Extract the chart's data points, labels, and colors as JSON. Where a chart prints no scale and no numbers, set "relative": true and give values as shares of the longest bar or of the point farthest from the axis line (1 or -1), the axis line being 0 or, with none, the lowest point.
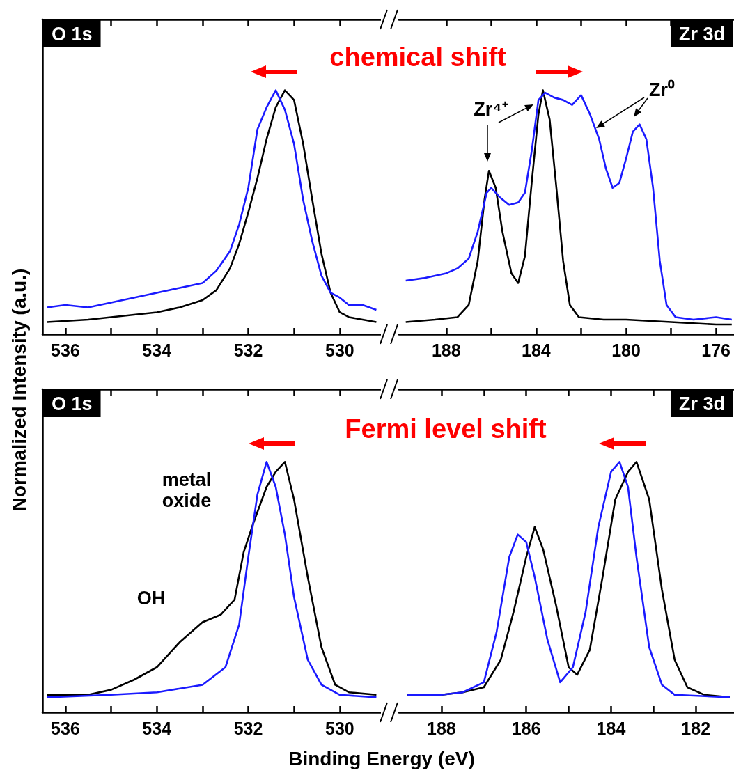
{
  "chart_data": [
    {
      "type": "line",
      "title": "O 1s",
      "ylabel": "Normalized Intensity (a.u.)",
      "relative": true,
      "xlim": [
        536.5,
        529.1
      ],
      "xticks": [
        536,
        {
          "value": 535,
          "label": null
        },
        534,
        {
          "value": 533,
          "label": null
        },
        532,
        {
          "value": 531,
          "label": null
        },
        530
      ],
      "annotations": [
        "chemical shift"
      ],
      "series": [
        {
          "color": "#000000",
          "x": [
            536.4,
            535.5,
            535,
            534.5,
            534,
            533.5,
            533,
            532.7,
            532.4,
            532.2,
            532,
            531.8,
            531.6,
            531.4,
            531.2,
            531,
            530.8,
            530.6,
            530.4,
            530.2,
            530,
            529.8,
            529.5,
            529.2
          ],
          "values": [
            0.05,
            0.06,
            0.07,
            0.08,
            0.09,
            0.11,
            0.14,
            0.18,
            0.27,
            0.37,
            0.5,
            0.64,
            0.8,
            0.93,
            1.0,
            0.96,
            0.78,
            0.55,
            0.33,
            0.17,
            0.09,
            0.07,
            0.06,
            0.05
          ]
        },
        {
          "color": "#1a1aff",
          "x": [
            536.4,
            536,
            535.5,
            535,
            534.5,
            534,
            533.5,
            533,
            532.7,
            532.4,
            532.2,
            532,
            531.8,
            531.6,
            531.4,
            531.2,
            531,
            530.8,
            530.6,
            530.4,
            530.2,
            530,
            529.8,
            529.5,
            529.2
          ],
          "values": [
            0.11,
            0.12,
            0.11,
            0.13,
            0.15,
            0.17,
            0.19,
            0.21,
            0.26,
            0.34,
            0.45,
            0.6,
            0.84,
            0.93,
            1.0,
            0.92,
            0.78,
            0.55,
            0.38,
            0.24,
            0.17,
            0.15,
            0.12,
            0.12,
            0.1
          ]
        }
      ]
    },
    {
      "type": "line",
      "title": "Zr 3d",
      "relative": true,
      "xlim": [
        190.1,
        175.2
      ],
      "xticks": [
        188,
        {
          "value": 186,
          "label": null
        },
        184,
        {
          "value": 182,
          "label": null
        },
        180,
        {
          "value": 178,
          "label": null
        },
        176
      ],
      "annotations": [
        "Zr⁴⁺",
        "Zr⁰"
      ],
      "series": [
        {
          "color": "#000000",
          "x": [
            189.8,
            188.5,
            187.5,
            187,
            186.6,
            186.3,
            186.1,
            185.8,
            185.5,
            185.1,
            184.8,
            184.5,
            184.2,
            183.9,
            183.7,
            183.4,
            183.1,
            182.8,
            182.5,
            182.1,
            181,
            180,
            178,
            176,
            175.3
          ],
          "values": [
            0.05,
            0.06,
            0.07,
            0.12,
            0.3,
            0.55,
            0.67,
            0.6,
            0.42,
            0.25,
            0.21,
            0.32,
            0.62,
            0.9,
            1.0,
            0.88,
            0.6,
            0.3,
            0.12,
            0.07,
            0.06,
            0.06,
            0.05,
            0.04,
            0.04
          ]
        },
        {
          "color": "#1a1aff",
          "x": [
            189.8,
            189,
            188.5,
            188,
            187.5,
            187,
            186.6,
            186.2,
            186,
            185.6,
            185.2,
            184.8,
            184.5,
            184.2,
            183.9,
            183.6,
            183.2,
            182.8,
            182.4,
            182,
            181.6,
            181.2,
            180.9,
            180.6,
            180.3,
            180,
            179.7,
            179.4,
            179.1,
            178.8,
            178.5,
            178.2,
            177.8,
            177,
            176,
            175.3
          ],
          "values": [
            0.22,
            0.23,
            0.24,
            0.25,
            0.27,
            0.31,
            0.42,
            0.58,
            0.6,
            0.56,
            0.53,
            0.54,
            0.58,
            0.75,
            0.96,
            0.99,
            0.97,
            0.96,
            0.94,
            0.98,
            0.9,
            0.8,
            0.68,
            0.6,
            0.62,
            0.72,
            0.83,
            0.86,
            0.8,
            0.6,
            0.3,
            0.12,
            0.07,
            0.06,
            0.07,
            0.06
          ]
        }
      ]
    },
    {
      "type": "line",
      "title": "O 1s",
      "xlabel": "Binding Energy (eV)",
      "relative": true,
      "xlim": [
        536.5,
        529.1
      ],
      "xticks": [
        536,
        {
          "value": 535,
          "label": null
        },
        534,
        {
          "value": 533,
          "label": null
        },
        532,
        {
          "value": 531,
          "label": null
        },
        530
      ],
      "annotations": [
        "Fermi level shift",
        "metal oxide",
        "OH"
      ],
      "series": [
        {
          "color": "#000000",
          "x": [
            536.4,
            535.5,
            535,
            534.5,
            534,
            533.5,
            533,
            532.6,
            532.3,
            532.1,
            531.9,
            531.6,
            531.4,
            531.2,
            531,
            530.7,
            530.4,
            530.1,
            529.8,
            529.2
          ],
          "values": [
            0.07,
            0.07,
            0.09,
            0.13,
            0.18,
            0.28,
            0.36,
            0.39,
            0.45,
            0.64,
            0.75,
            0.9,
            0.96,
            1.0,
            0.85,
            0.54,
            0.26,
            0.11,
            0.08,
            0.07
          ]
        },
        {
          "color": "#1a1aff",
          "x": [
            536.4,
            535,
            534,
            533,
            532.5,
            532.2,
            532,
            531.8,
            531.6,
            531.4,
            531.2,
            531,
            530.7,
            530.4,
            530,
            529.2
          ],
          "values": [
            0.06,
            0.07,
            0.08,
            0.11,
            0.18,
            0.35,
            0.62,
            0.87,
            1.0,
            0.9,
            0.71,
            0.46,
            0.21,
            0.11,
            0.07,
            0.06
          ]
        }
      ]
    },
    {
      "type": "line",
      "title": "Zr 3d",
      "relative": true,
      "xlim": [
        189.0,
        181.1
      ],
      "xticks": [
        188,
        {
          "value": 187,
          "label": null
        },
        186,
        {
          "value": 185,
          "label": null
        },
        184,
        {
          "value": 183,
          "label": null
        },
        182
      ],
      "series": [
        {
          "color": "#000000",
          "x": [
            188.8,
            188,
            187.5,
            187,
            186.6,
            186.3,
            186,
            185.8,
            185.6,
            185.3,
            185,
            184.8,
            184.5,
            184.2,
            183.9,
            183.6,
            183.4,
            183.1,
            182.8,
            182.5,
            182.2,
            181.8,
            181.2
          ],
          "values": [
            0.07,
            0.07,
            0.08,
            0.1,
            0.21,
            0.4,
            0.62,
            0.74,
            0.65,
            0.43,
            0.18,
            0.15,
            0.25,
            0.54,
            0.85,
            0.96,
            1.0,
            0.85,
            0.49,
            0.21,
            0.1,
            0.07,
            0.06
          ]
        },
        {
          "color": "#1a1aff",
          "x": [
            188.8,
            188,
            187.5,
            187,
            186.7,
            186.4,
            186.2,
            186,
            185.8,
            185.5,
            185.2,
            184.9,
            184.6,
            184.3,
            184,
            183.8,
            183.6,
            183.4,
            183.1,
            182.8,
            182.5,
            181.2
          ],
          "values": [
            0.07,
            0.07,
            0.08,
            0.12,
            0.32,
            0.62,
            0.71,
            0.68,
            0.54,
            0.29,
            0.12,
            0.18,
            0.4,
            0.74,
            0.96,
            1.0,
            0.9,
            0.62,
            0.26,
            0.11,
            0.07,
            0.06
          ]
        }
      ]
    }
  ]
}
